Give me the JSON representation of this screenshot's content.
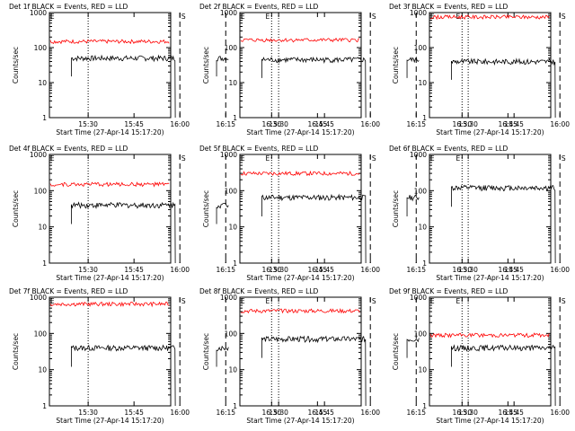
{
  "common": {
    "xlabel": "Start Time (27-Apr-14 15:17:20)",
    "ylabel": "Counts/sec",
    "xticks": [
      "15:30",
      "15:45",
      "16:00",
      "16:15",
      "16:30",
      "16:45"
    ],
    "yticks": [
      "1",
      "10",
      "100",
      "1000"
    ],
    "xlim_minutes_after_15h": [
      17.33,
      57
    ],
    "ylim": [
      1,
      1000
    ],
    "yscale": "log",
    "marker_letters": [
      "E",
      "S",
      "E"
    ]
  },
  "colors": {
    "events": "#000000",
    "lld": "#ff0000",
    "axes": "#000000"
  },
  "chart_data": [
    {
      "type": "line",
      "title": "Det 1f BLACK = Events, RED = LLD",
      "series": [
        {
          "label": "BLACK = Events",
          "values": [
            [
              25,
              50
            ],
            [
              59,
              50
            ]
          ]
        },
        {
          "label": "RED = LLD",
          "values": [
            [
              19,
              150
            ],
            [
              59,
              150
            ]
          ]
        }
      ]
    },
    {
      "type": "line",
      "title": "Det 2f BLACK = Events, RED = LLD",
      "series": [
        {
          "label": "BLACK = Events",
          "values": [
            [
              25,
              45
            ],
            [
              59,
              45
            ]
          ]
        },
        {
          "label": "RED = LLD",
          "values": [
            [
              19,
              165
            ],
            [
              59,
              165
            ]
          ]
        }
      ]
    },
    {
      "type": "line",
      "title": "Det 3f BLACK = Events, RED = LLD",
      "series": [
        {
          "label": "BLACK = Events",
          "values": [
            [
              25,
              40
            ],
            [
              59,
              40
            ]
          ]
        },
        {
          "label": "RED = LLD",
          "values": [
            [
              19,
              750
            ],
            [
              59,
              750
            ]
          ]
        }
      ]
    },
    {
      "type": "line",
      "title": "Det 4f BLACK = Events, RED = LLD",
      "series": [
        {
          "label": "BLACK = Events",
          "values": [
            [
              25,
              40
            ],
            [
              59,
              40
            ]
          ]
        },
        {
          "label": "RED = LLD",
          "values": [
            [
              19,
              150
            ],
            [
              59,
              150
            ]
          ]
        }
      ]
    },
    {
      "type": "line",
      "title": "Det 5f BLACK = Events, RED = LLD",
      "series": [
        {
          "label": "BLACK = Events",
          "values": [
            [
              25,
              65
            ],
            [
              59,
              65
            ]
          ]
        },
        {
          "label": "RED = LLD",
          "values": [
            [
              19,
              300
            ],
            [
              59,
              300
            ]
          ]
        }
      ]
    },
    {
      "type": "line",
      "title": "Det 6f BLACK = Events, RED = LLD",
      "series": [
        {
          "label": "BLACK = Events",
          "values": [
            [
              25,
              120
            ],
            [
              59,
              120
            ]
          ]
        }
      ]
    },
    {
      "type": "line",
      "title": "Det 7f BLACK = Events, RED = LLD",
      "series": [
        {
          "label": "BLACK = Events",
          "values": [
            [
              25,
              40
            ],
            [
              59,
              40
            ]
          ]
        },
        {
          "label": "RED = LLD",
          "values": [
            [
              19,
              650
            ],
            [
              59,
              650
            ]
          ]
        }
      ]
    },
    {
      "type": "line",
      "title": "Det 8f BLACK = Events, RED = LLD",
      "series": [
        {
          "label": "BLACK = Events",
          "values": [
            [
              25,
              70
            ],
            [
              59,
              70
            ]
          ]
        },
        {
          "label": "RED = LLD",
          "values": [
            [
              19,
              420
            ],
            [
              59,
              420
            ]
          ]
        }
      ]
    },
    {
      "type": "line",
      "title": "Det 9f BLACK = Events, RED = LLD",
      "series": [
        {
          "label": "BLACK = Events",
          "values": [
            [
              25,
              40
            ],
            [
              59,
              40
            ]
          ]
        },
        {
          "label": "RED = LLD",
          "values": [
            [
              19,
              90
            ],
            [
              59,
              90
            ]
          ]
        }
      ]
    }
  ]
}
